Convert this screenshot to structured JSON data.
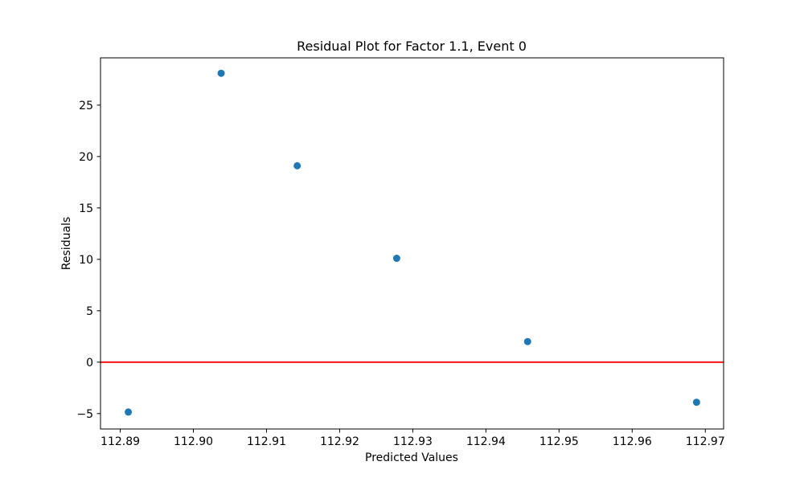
{
  "chart_data": {
    "type": "scatter",
    "title": "Residual Plot for Factor 1.1, Event 0",
    "xlabel": "Predicted Values",
    "ylabel": "Residuals",
    "xlim": [
      112.8873,
      112.9725
    ],
    "ylim": [
      -6.5,
      29.6
    ],
    "xticks": [
      {
        "value": 112.89,
        "label": "112.89"
      },
      {
        "value": 112.9,
        "label": "112.90"
      },
      {
        "value": 112.91,
        "label": "112.91"
      },
      {
        "value": 112.92,
        "label": "112.92"
      },
      {
        "value": 112.93,
        "label": "112.93"
      },
      {
        "value": 112.94,
        "label": "112.94"
      },
      {
        "value": 112.95,
        "label": "112.95"
      },
      {
        "value": 112.96,
        "label": "112.96"
      },
      {
        "value": 112.97,
        "label": "112.97"
      }
    ],
    "yticks": [
      {
        "value": -5,
        "label": "−5"
      },
      {
        "value": 0,
        "label": "0"
      },
      {
        "value": 5,
        "label": "5"
      },
      {
        "value": 10,
        "label": "10"
      },
      {
        "value": 15,
        "label": "15"
      },
      {
        "value": 20,
        "label": "20"
      },
      {
        "value": 25,
        "label": "25"
      }
    ],
    "points": [
      {
        "x": 112.8911,
        "y": -4.85
      },
      {
        "x": 112.9038,
        "y": 28.1
      },
      {
        "x": 112.9142,
        "y": 19.1
      },
      {
        "x": 112.9278,
        "y": 10.1
      },
      {
        "x": 112.9457,
        "y": 2.0
      },
      {
        "x": 112.9688,
        "y": -3.9
      }
    ],
    "reference_line": {
      "y": 0
    },
    "grid": false,
    "legend": "none",
    "colors": {
      "points": "#1f77b4",
      "reference_line": "#ff0000",
      "axes": "#000000"
    }
  }
}
